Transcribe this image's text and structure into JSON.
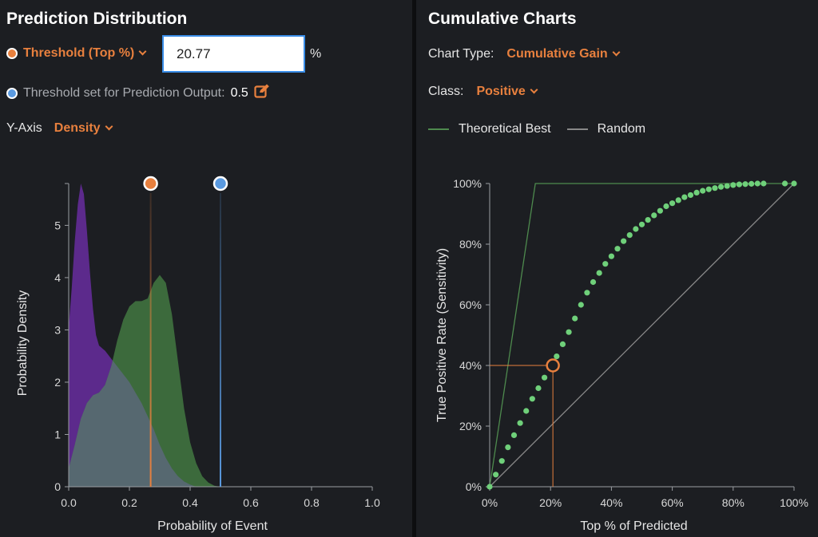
{
  "left": {
    "title": "Prediction Distribution",
    "threshold_label": "Threshold (Top %)",
    "threshold_value": "20.77",
    "threshold_unit": "%",
    "output_threshold_label": "Threshold set for Prediction Output:",
    "output_threshold_value": "0.5",
    "yaxis_label": "Y-Axis",
    "yaxis_value": "Density"
  },
  "right": {
    "title": "Cumulative Charts",
    "chart_type_label": "Chart Type:",
    "chart_type_value": "Cumulative Gain",
    "class_label": "Class:",
    "class_value": "Positive",
    "legend_best": "Theoretical Best",
    "legend_random": "Random"
  },
  "colors": {
    "accent": "#e8803e",
    "output_marker": "#5a9ae0",
    "negative_density": "#5c2a8c",
    "positive_density": "#3c6a3c",
    "overlap_density": "#566870",
    "gain_points": "#6fd07a",
    "theoretical_best": "#4e8a4e",
    "random": "#888888"
  },
  "chart_data": [
    {
      "type": "area",
      "xlabel": "Probability of Event",
      "ylabel": "Probability Density",
      "xlim": [
        0,
        1
      ],
      "ylim": [
        0,
        5.8
      ],
      "xticks": [
        "0.0",
        "0.2",
        "0.4",
        "0.6",
        "0.8",
        "1.0"
      ],
      "yticks": [
        "0",
        "1",
        "2",
        "3",
        "4",
        "5"
      ],
      "threshold_x": 0.27,
      "output_threshold_x": 0.5,
      "series": [
        {
          "role": "negative",
          "points": [
            [
              0,
              3.05
            ],
            [
              0.01,
              3.8
            ],
            [
              0.02,
              4.7
            ],
            [
              0.03,
              5.4
            ],
            [
              0.04,
              5.8
            ],
            [
              0.05,
              5.6
            ],
            [
              0.06,
              4.9
            ],
            [
              0.07,
              4.1
            ],
            [
              0.08,
              3.4
            ],
            [
              0.09,
              2.9
            ],
            [
              0.1,
              2.7
            ],
            [
              0.12,
              2.6
            ],
            [
              0.14,
              2.45
            ],
            [
              0.16,
              2.3
            ],
            [
              0.18,
              2.15
            ],
            [
              0.2,
              2.0
            ],
            [
              0.22,
              1.8
            ],
            [
              0.24,
              1.6
            ],
            [
              0.26,
              1.35
            ],
            [
              0.28,
              1.1
            ],
            [
              0.3,
              0.8
            ],
            [
              0.32,
              0.55
            ],
            [
              0.34,
              0.35
            ],
            [
              0.36,
              0.2
            ],
            [
              0.38,
              0.1
            ],
            [
              0.4,
              0.04
            ],
            [
              0.42,
              0.0
            ]
          ]
        },
        {
          "role": "positive",
          "points": [
            [
              0,
              0.35
            ],
            [
              0.02,
              0.8
            ],
            [
              0.04,
              1.3
            ],
            [
              0.06,
              1.6
            ],
            [
              0.08,
              1.75
            ],
            [
              0.1,
              1.8
            ],
            [
              0.12,
              1.95
            ],
            [
              0.14,
              2.3
            ],
            [
              0.16,
              2.8
            ],
            [
              0.18,
              3.2
            ],
            [
              0.2,
              3.45
            ],
            [
              0.22,
              3.55
            ],
            [
              0.24,
              3.55
            ],
            [
              0.26,
              3.6
            ],
            [
              0.28,
              3.9
            ],
            [
              0.3,
              4.05
            ],
            [
              0.32,
              3.9
            ],
            [
              0.34,
              3.3
            ],
            [
              0.36,
              2.4
            ],
            [
              0.38,
              1.5
            ],
            [
              0.4,
              0.85
            ],
            [
              0.42,
              0.45
            ],
            [
              0.44,
              0.2
            ],
            [
              0.46,
              0.08
            ],
            [
              0.48,
              0.02
            ],
            [
              0.5,
              0.0
            ]
          ]
        }
      ]
    },
    {
      "type": "scatter",
      "xlabel": "Top % of Predicted",
      "ylabel": "True Positive Rate (Sensitivity)",
      "xlim": [
        0,
        100
      ],
      "ylim": [
        0,
        100
      ],
      "xticks": [
        "0%",
        "20%",
        "40%",
        "60%",
        "80%",
        "100%"
      ],
      "yticks": [
        "0%",
        "20%",
        "40%",
        "60%",
        "80%",
        "100%"
      ],
      "highlight": {
        "x": 20.77,
        "y": 40
      },
      "theoretical_best": [
        [
          0,
          0
        ],
        [
          15,
          100
        ],
        [
          100,
          100
        ]
      ],
      "random": [
        [
          0,
          0
        ],
        [
          100,
          100
        ]
      ],
      "curve": [
        [
          0,
          0
        ],
        [
          2,
          4
        ],
        [
          4,
          8.5
        ],
        [
          6,
          13
        ],
        [
          8,
          17
        ],
        [
          10,
          21
        ],
        [
          12,
          25
        ],
        [
          14,
          29
        ],
        [
          16,
          32.5
        ],
        [
          18,
          36
        ],
        [
          20,
          39.5
        ],
        [
          22,
          43
        ],
        [
          24,
          47
        ],
        [
          26,
          51
        ],
        [
          28,
          55.5
        ],
        [
          30,
          60
        ],
        [
          32,
          64
        ],
        [
          34,
          67.5
        ],
        [
          36,
          70.5
        ],
        [
          38,
          73.5
        ],
        [
          40,
          76
        ],
        [
          42,
          78.5
        ],
        [
          44,
          81
        ],
        [
          46,
          83
        ],
        [
          48,
          85
        ],
        [
          50,
          86.5
        ],
        [
          52,
          88
        ],
        [
          54,
          89.5
        ],
        [
          56,
          91
        ],
        [
          58,
          92.5
        ],
        [
          60,
          93.5
        ],
        [
          62,
          94.5
        ],
        [
          64,
          95.5
        ],
        [
          66,
          96.2
        ],
        [
          68,
          97
        ],
        [
          70,
          97.6
        ],
        [
          72,
          98.1
        ],
        [
          74,
          98.5
        ],
        [
          76,
          98.9
        ],
        [
          78,
          99.2
        ],
        [
          80,
          99.5
        ],
        [
          82,
          99.7
        ],
        [
          84,
          99.8
        ],
        [
          86,
          99.9
        ],
        [
          88,
          100
        ],
        [
          90,
          100
        ],
        [
          97,
          100
        ],
        [
          100,
          100
        ]
      ]
    }
  ]
}
